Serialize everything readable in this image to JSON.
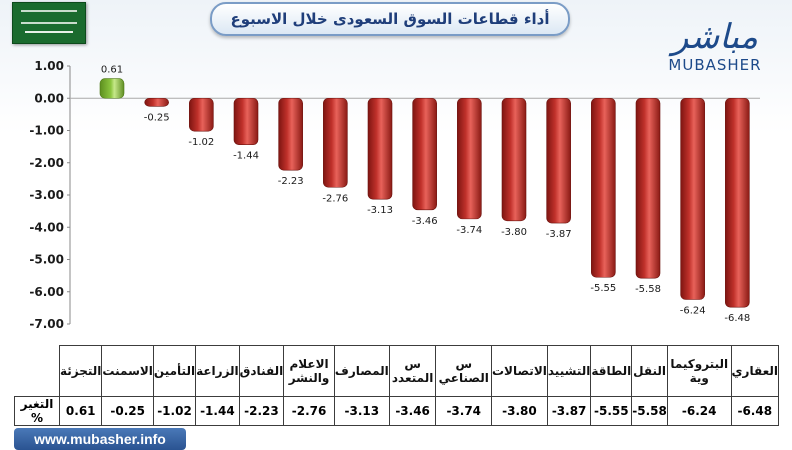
{
  "header": {
    "title": "أداء قطاعات السوق السعودى خلال الاسبوع"
  },
  "logo": {
    "arabic": "مباشر",
    "english": "MUBASHER"
  },
  "footer": {
    "website": "www.mubasher.info"
  },
  "table": {
    "row_label": "التغير %"
  },
  "colors": {
    "positive_bar": "#8cc63f",
    "negative_bar": "#c0312b",
    "title_text": "#1f3e7a"
  },
  "chart_data": {
    "type": "bar",
    "categories": [
      "التجزئة",
      "الاسمنت",
      "التأمين",
      "الزراعة",
      "الفنادق",
      "الاعلام والنشر",
      "المصارف",
      "س المتعدد",
      "س الصناعي",
      "الاتصالات",
      "التشييد",
      "الطاقة",
      "النقل",
      "البتروكيما وية",
      "العقاري"
    ],
    "values": [
      0.61,
      -0.25,
      -1.02,
      -1.44,
      -2.23,
      -2.76,
      -3.13,
      -3.46,
      -3.74,
      -3.8,
      -3.87,
      -5.55,
      -5.58,
      -6.24,
      -6.48
    ],
    "value_labels": [
      "0.61",
      "-0.25",
      "-1.02",
      "-1.44",
      "-2.23",
      "-2.76",
      "-3.13",
      "-3.46",
      "-3.74",
      "-3.80",
      "-3.87",
      "-5.55",
      "-5.58",
      "-6.24",
      "-6.48"
    ],
    "ylim": [
      -7.0,
      1.0
    ],
    "yticks": [
      "1.00",
      "0.00",
      "-1.00",
      "-2.00",
      "-3.00",
      "-4.00",
      "-5.00",
      "-6.00",
      "-7.00"
    ],
    "grid": false
  }
}
